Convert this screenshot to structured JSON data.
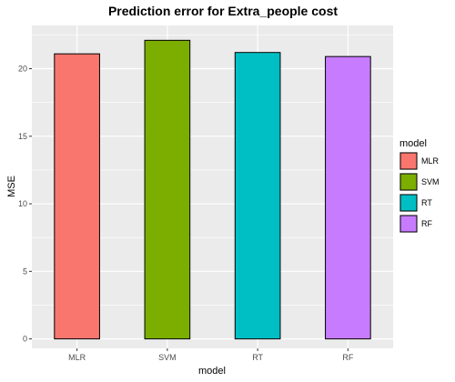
{
  "chart_data": {
    "type": "bar",
    "title": "Prediction error for Extra_people cost",
    "xlabel": "model",
    "ylabel": "MSE",
    "categories": [
      "MLR",
      "SVM",
      "RT",
      "RF"
    ],
    "values": [
      21.1,
      22.1,
      21.2,
      20.9
    ],
    "colors": [
      "#F8766D",
      "#7CAE00",
      "#00BFC4",
      "#C77CFF"
    ],
    "ylim": [
      -0.7,
      23.2
    ],
    "yticks": [
      0,
      5,
      10,
      15,
      20
    ],
    "ytick_labels": [
      "0",
      "5",
      "10",
      "15",
      "20"
    ],
    "grid": true,
    "legend": {
      "title": "model",
      "position": "right",
      "items": [
        "MLR",
        "SVM",
        "RT",
        "RF"
      ]
    },
    "theme": {
      "panel_background": "#EBEBEB",
      "grid_color": "#FFFFFF",
      "bar_outline": "#000000"
    }
  }
}
